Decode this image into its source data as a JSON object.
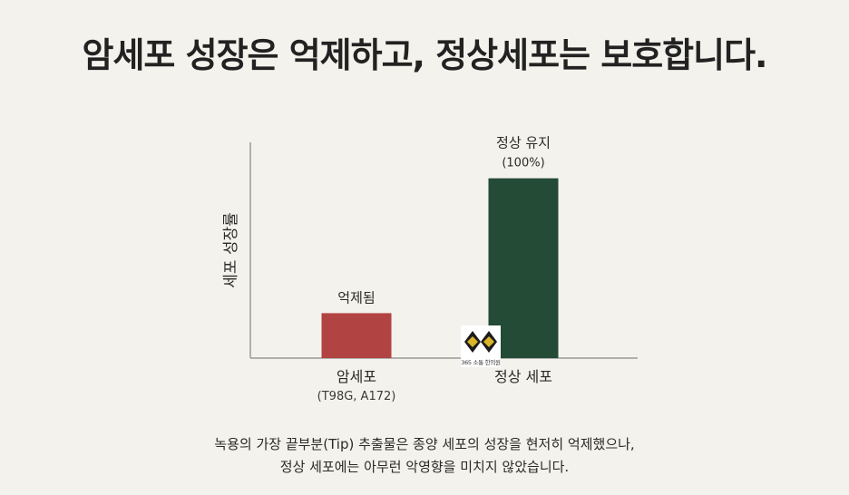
{
  "title": "암세포 성장은 억제하고, 정상세포는 보호합니다.",
  "chart_data": {
    "type": "bar",
    "ylabel": "세포 성장률",
    "categories": [
      {
        "name": "암세포",
        "sub": "(T98G, A172)",
        "value": 25,
        "label": "억제됨",
        "sublabel": "",
        "color": "#b24343"
      },
      {
        "name": "정상 세포",
        "sub": "",
        "value": 100,
        "label": "정상 유지",
        "sublabel": "(100%)",
        "color": "#234b36"
      }
    ],
    "ylim": [
      0,
      120
    ],
    "grid": false
  },
  "watermark": {
    "text": "365 소통 한의원"
  },
  "caption": {
    "line1": "녹용의 가장 끝부분(Tip) 추출물은 종양 세포의 성장을 현저히 억제했으나,",
    "line2": "정상 세포에는 아무런 악영향을 미치지 않았습니다."
  }
}
